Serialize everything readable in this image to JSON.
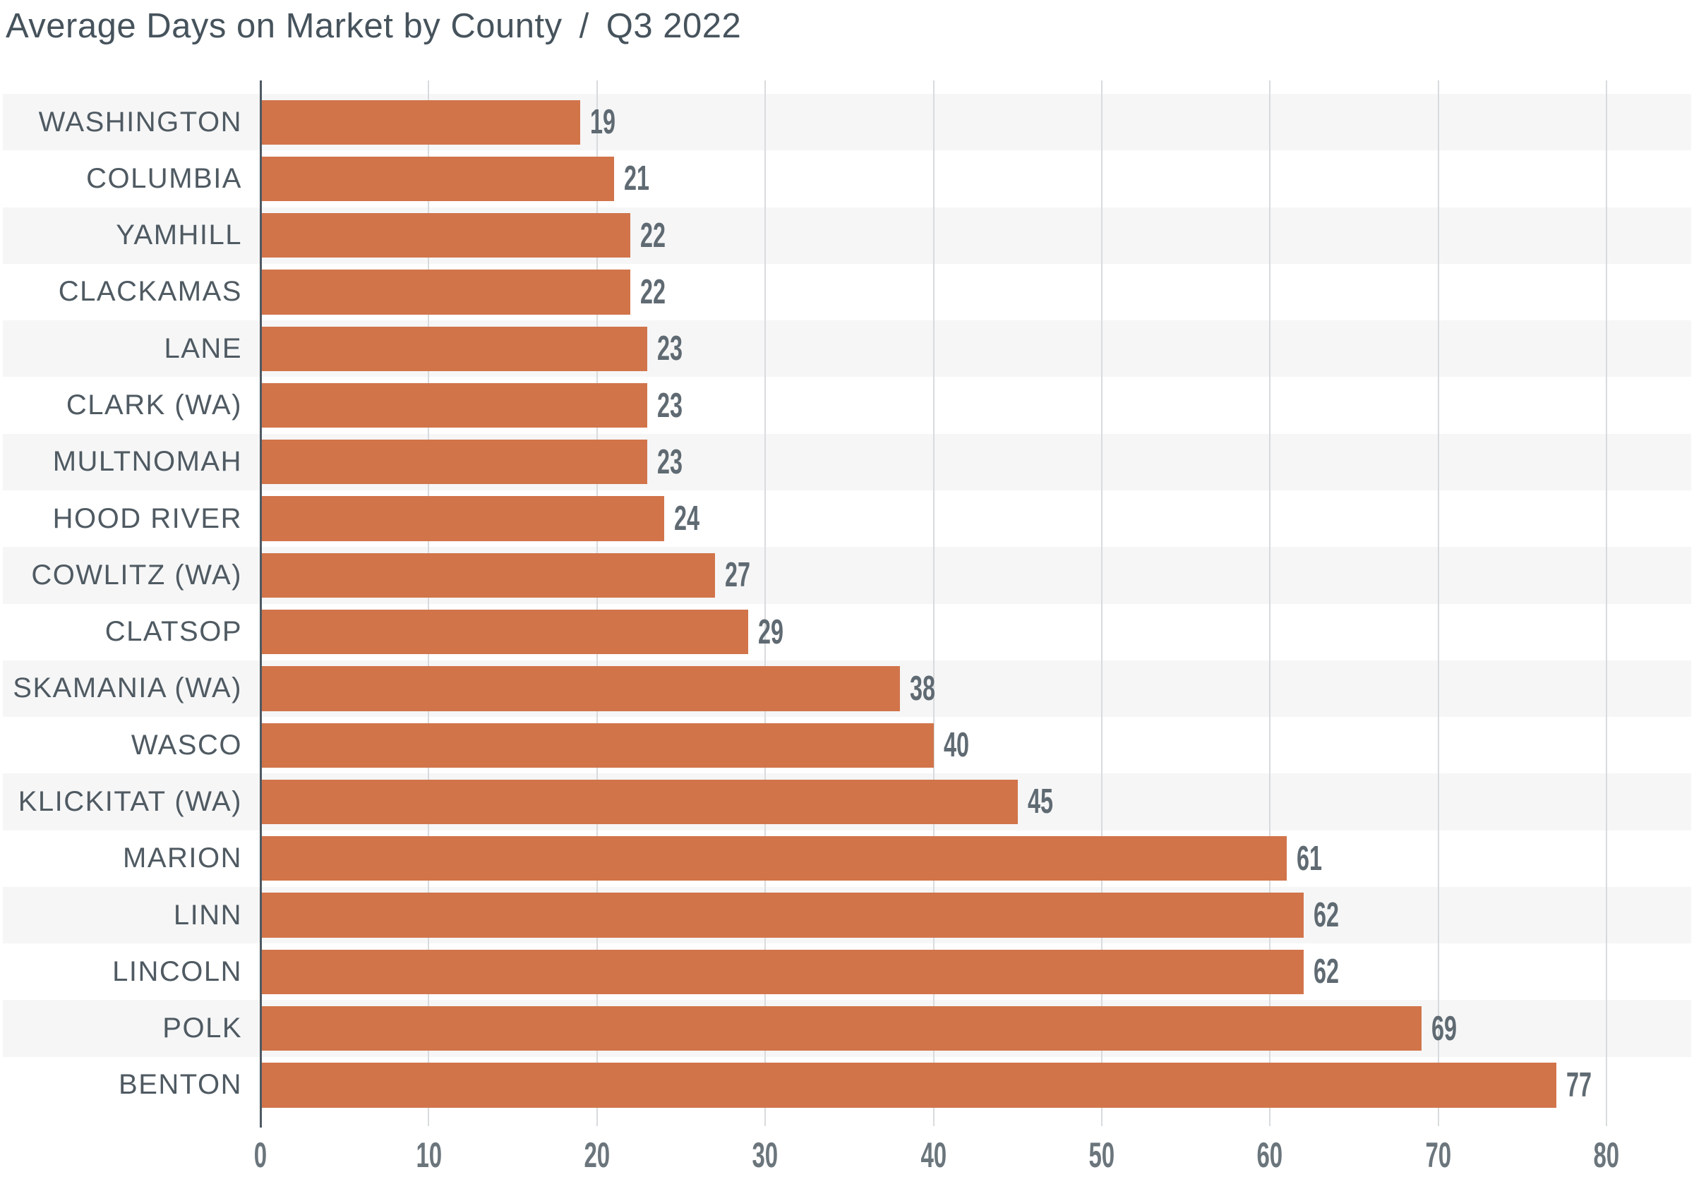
{
  "header": {
    "title": "Average Days on Market by County",
    "separator": "/",
    "period": "Q3 2022"
  },
  "chart_data": {
    "type": "bar",
    "orientation": "horizontal",
    "title": "Average Days on Market by County",
    "subtitle": "Q3 2022",
    "xlabel": "",
    "ylabel": "",
    "categories": [
      "WASHINGTON",
      "COLUMBIA",
      "YAMHILL",
      "CLACKAMAS",
      "LANE",
      "CLARK (WA)",
      "MULTNOMAH",
      "HOOD RIVER",
      "COWLITZ (WA)",
      "CLATSOP",
      "SKAMANIA (WA)",
      "WASCO",
      "KLICKITAT (WA)",
      "MARION",
      "LINN",
      "LINCOLN",
      "POLK",
      "BENTON"
    ],
    "values": [
      19,
      21,
      22,
      22,
      23,
      23,
      23,
      24,
      27,
      29,
      38,
      40,
      45,
      61,
      62,
      62,
      69,
      77
    ],
    "xlim": [
      0,
      85.2
    ],
    "xticks": [
      0,
      10,
      20,
      30,
      40,
      50,
      60,
      70,
      80
    ],
    "grid": "vertical",
    "legend": "none",
    "row_striping": "alternate-odd-rows",
    "colors": {
      "bar": "#d1744a",
      "stripe": "#f6f6f7",
      "gridline": "#d8dbdd",
      "axis": "#4e5962",
      "category_label": "#4f5a62",
      "value_label": "#5f6a72",
      "tick_label": "#6b757c",
      "title": "#46535c",
      "background": "#ffffff"
    }
  }
}
